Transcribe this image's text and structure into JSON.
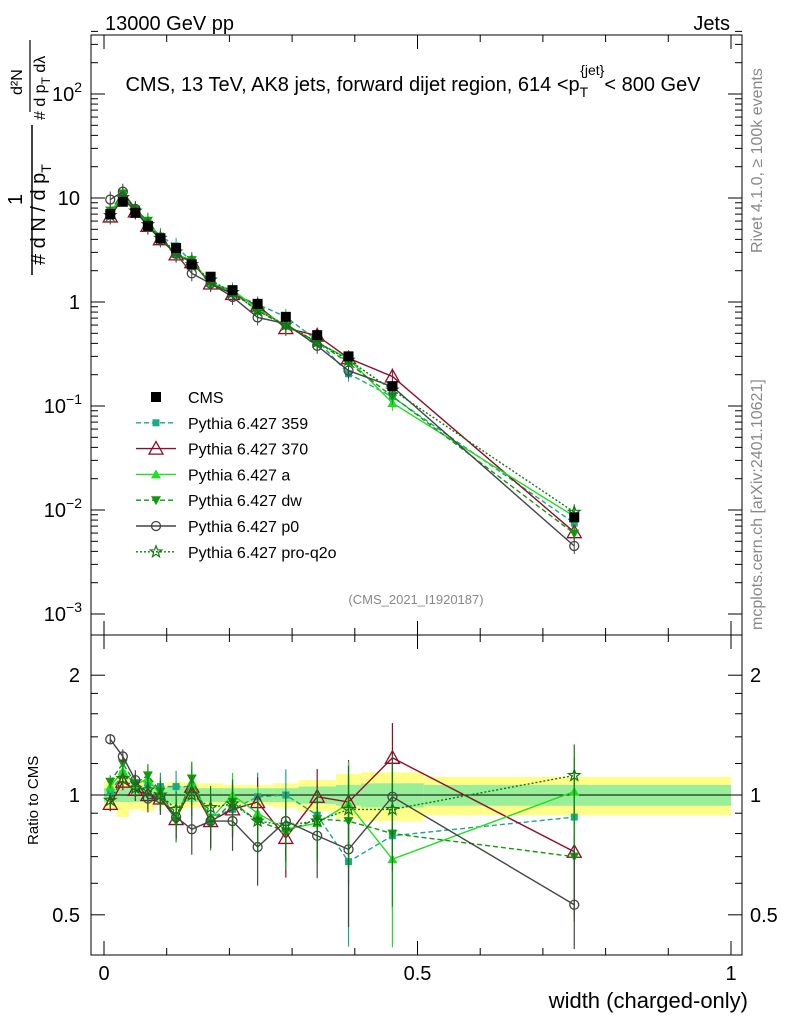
{
  "header": {
    "left": "13000 GeV pp",
    "right": "Jets"
  },
  "side": {
    "rivet": "Rivet 4.1.0, ≥ 100k events",
    "mcplots": "mcplots.cern.ch [arXiv:2401.10621]"
  },
  "chart_data": {
    "type": "line",
    "title": "CMS, 13 TeV, AK8 jets, forward dijet region, 614 <p_T^{jet}< 800 GeV",
    "xlabel": "width (charged-only)",
    "ylabel": "1/dN/dp_T · d²N/dp_T dλ",
    "ratio_ylabel": "Ratio to CMS",
    "watermark": "(CMS_2021_I1920187)",
    "xlim": [
      0,
      1
    ],
    "ylim": [
      0.001,
      400
    ],
    "ratio_ylim": [
      0.4,
      2.4
    ],
    "x_ticks": [
      "0",
      "0.5",
      "1"
    ],
    "y_ticks": [
      "10^-3",
      "10^-2",
      "10^-1",
      "1",
      "10",
      "10^2"
    ],
    "ratio_ticks": [
      "0.5",
      "1",
      "2"
    ],
    "x": [
      0.01,
      0.03,
      0.05,
      0.07,
      0.09,
      0.115,
      0.14,
      0.17,
      0.205,
      0.245,
      0.29,
      0.34,
      0.39,
      0.46,
      0.75
    ],
    "bin_edges": [
      0,
      0.02,
      0.04,
      0.06,
      0.08,
      0.1,
      0.13,
      0.15,
      0.19,
      0.22,
      0.27,
      0.31,
      0.37,
      0.41,
      0.51,
      1.0
    ],
    "cms": {
      "name": "CMS",
      "values": [
        7.0,
        9.2,
        7.2,
        5.4,
        4.1,
        3.3,
        2.3,
        1.75,
        1.3,
        0.96,
        0.72,
        0.48,
        0.3,
        0.155,
        0.0085
      ]
    },
    "series": [
      {
        "name": "Pythia 6.427 359",
        "color": "#1aaa8a",
        "dash": "5,3",
        "marker": "square",
        "ratio": [
          1.02,
          1.13,
          1.05,
          1.06,
          1.05,
          1.05,
          1.05,
          0.88,
          0.92,
          0.99,
          1.0,
          0.89,
          0.68,
          0.79,
          0.88
        ]
      },
      {
        "name": "Pythia 6.427 370",
        "color": "#8b0e2a",
        "dash": "",
        "marker": "triangle-open",
        "ratio": [
          0.95,
          1.08,
          1.03,
          1.0,
          0.98,
          0.87,
          1.05,
          0.86,
          0.92,
          0.96,
          0.78,
          0.99,
          0.96,
          1.24,
          0.72
        ]
      },
      {
        "name": "Pythia 6.427 a",
        "color": "#22dd22",
        "dash": "",
        "marker": "triangle",
        "ratio": [
          1.05,
          1.15,
          1.06,
          1.1,
          1.0,
          0.88,
          1.08,
          0.87,
          1.0,
          0.9,
          0.82,
          0.85,
          0.95,
          0.69,
          1.02
        ]
      },
      {
        "name": "Pythia 6.427 dw",
        "color": "#119911",
        "dash": "5,3",
        "marker": "triangle-down",
        "ratio": [
          1.08,
          1.2,
          1.07,
          1.12,
          1.02,
          0.86,
          1.1,
          0.85,
          0.96,
          0.86,
          0.81,
          0.87,
          0.86,
          0.8,
          0.7
        ]
      },
      {
        "name": "Pythia 6.427 p0",
        "color": "#444444",
        "dash": "",
        "marker": "circle-open",
        "ratio": [
          1.38,
          1.25,
          1.09,
          0.98,
          0.98,
          0.88,
          0.82,
          0.86,
          0.86,
          0.74,
          0.86,
          0.79,
          0.73,
          0.99,
          0.53
        ]
      },
      {
        "name": "Pythia 6.427 pro-q2o",
        "color": "#117711",
        "dash": "2,2",
        "marker": "star",
        "ratio": [
          0.97,
          1.1,
          1.04,
          1.03,
          1.0,
          0.92,
          1.0,
          0.93,
          0.95,
          0.86,
          0.84,
          0.86,
          0.92,
          0.92,
          1.12
        ]
      }
    ],
    "band_inner": [
      0.04,
      0.04,
      0.04,
      0.04,
      0.04,
      0.05,
      0.04,
      0.04,
      0.04,
      0.04,
      0.04,
      0.05,
      0.06,
      0.07,
      0.06
    ],
    "band_outer": [
      0.08,
      0.12,
      0.08,
      0.09,
      0.06,
      0.08,
      0.07,
      0.07,
      0.06,
      0.06,
      0.07,
      0.09,
      0.13,
      0.14,
      0.11
    ]
  }
}
